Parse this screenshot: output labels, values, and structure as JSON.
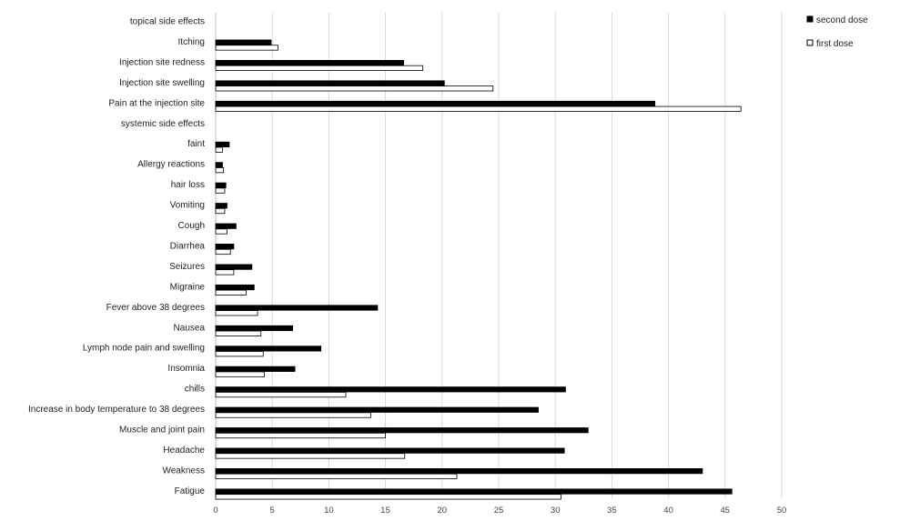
{
  "chart_data": {
    "type": "bar",
    "orientation": "horizontal",
    "categories": [
      "topical side effects",
      "Itching",
      "Injection site redness",
      "Injection site swelling",
      "Pain at the injection site",
      "systemic side effects",
      "faint",
      "Allergy reactions",
      "hair loss",
      "Vomiting",
      "Cough",
      "Diarrhea",
      "Seizures",
      "Migraine",
      "Fever above 38 degrees",
      "Nausea",
      "Lymph node pain and swelling",
      "Insomnia",
      "chills",
      "Increase in body temperature to 38 degrees",
      "Muscle and joint pain",
      "Headache",
      "Weakness",
      "Fatigue"
    ],
    "series": [
      {
        "name": "second dose",
        "color": "#000000",
        "values": [
          null,
          4.9,
          16.6,
          20.2,
          38.8,
          null,
          1.2,
          0.6,
          0.9,
          1.0,
          1.8,
          1.6,
          3.2,
          3.4,
          14.3,
          6.8,
          9.3,
          7.0,
          30.9,
          28.5,
          32.9,
          30.8,
          43.0,
          45.6
        ]
      },
      {
        "name": "first dose",
        "color": "#ffffff",
        "values": [
          null,
          5.5,
          18.3,
          24.5,
          46.4,
          null,
          0.6,
          0.7,
          0.8,
          0.8,
          1.0,
          1.3,
          1.6,
          2.7,
          3.7,
          4.0,
          4.2,
          4.3,
          11.5,
          13.7,
          15.0,
          16.7,
          21.3,
          30.5
        ]
      }
    ],
    "xlim": [
      0,
      50
    ],
    "xticks": [
      "0",
      "5",
      "10",
      "15",
      "20",
      "25",
      "30",
      "35",
      "40",
      "45",
      "50"
    ],
    "grid": true,
    "legend_position": "top-right"
  }
}
